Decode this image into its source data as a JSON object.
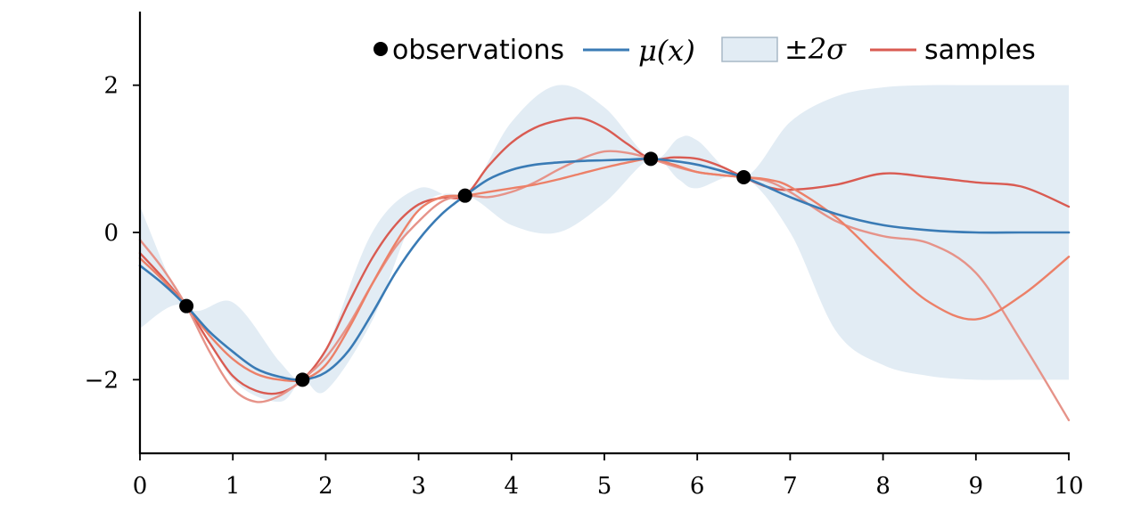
{
  "chart_data": {
    "type": "line",
    "title": "",
    "xlabel": "",
    "ylabel": "",
    "xlim": [
      0,
      10
    ],
    "ylim": [
      -3,
      3
    ],
    "xticks": [
      "0",
      "1",
      "2",
      "3",
      "4",
      "5",
      "6",
      "7",
      "8",
      "9",
      "10"
    ],
    "yticks": [
      "2",
      "0",
      "−2"
    ],
    "legend_position": "top-right",
    "grid": false,
    "legend": {
      "observations": "observations",
      "mean": "μ(x)",
      "band": "±2σ",
      "samples": "samples"
    },
    "colors": {
      "mean": "#3a7bb5",
      "band": "#e2ecf4",
      "band_edge": "#a8b8c6",
      "sample_1": "#d95b52",
      "sample_2": "#e69389",
      "sample_3": "#ec8068",
      "observations": "#000000"
    },
    "observations": {
      "x": [
        0.5,
        1.75,
        3.5,
        5.5,
        6.5
      ],
      "y": [
        -1.0,
        -2.0,
        0.5,
        1.0,
        0.75
      ]
    },
    "band": {
      "x": [
        0,
        0.5,
        1.0,
        1.5,
        1.75,
        2.0,
        2.5,
        3.0,
        3.5,
        4.0,
        4.5,
        5.0,
        5.5,
        5.8,
        6.0,
        6.5,
        7.0,
        7.5,
        8.0,
        8.5,
        9.0,
        9.5,
        10.0
      ],
      "upper": [
        0.35,
        -1.0,
        -0.95,
        -1.75,
        -2.0,
        -1.6,
        0.0,
        0.6,
        0.5,
        1.5,
        2.0,
        1.7,
        1.0,
        1.28,
        1.25,
        0.75,
        1.5,
        1.85,
        1.97,
        2.0,
        2.0,
        2.0,
        2.0
      ],
      "lower": [
        -1.3,
        -1.0,
        -2.0,
        -2.3,
        -2.0,
        -2.15,
        -1.2,
        0.3,
        0.5,
        0.1,
        0.0,
        0.4,
        1.0,
        0.72,
        0.6,
        0.75,
        0.0,
        -1.35,
        -1.8,
        -1.95,
        -2.0,
        -2.0,
        -2.0
      ]
    },
    "series": [
      {
        "name": "μ(x)",
        "role": "mean",
        "x": [
          0,
          0.25,
          0.5,
          0.75,
          1.0,
          1.25,
          1.5,
          1.75,
          2.0,
          2.25,
          2.5,
          2.75,
          3.0,
          3.25,
          3.5,
          3.75,
          4.0,
          4.25,
          4.5,
          4.75,
          5.0,
          5.25,
          5.5,
          5.75,
          6.0,
          6.25,
          6.5,
          6.75,
          7.0,
          7.5,
          8.0,
          8.5,
          9.0,
          9.5,
          10.0
        ],
        "y": [
          -0.45,
          -0.7,
          -1.0,
          -1.35,
          -1.62,
          -1.85,
          -1.96,
          -2.0,
          -1.9,
          -1.6,
          -1.1,
          -0.55,
          -0.1,
          0.25,
          0.5,
          0.72,
          0.85,
          0.92,
          0.95,
          0.97,
          0.98,
          0.99,
          1.0,
          0.97,
          0.92,
          0.84,
          0.75,
          0.62,
          0.48,
          0.25,
          0.1,
          0.03,
          0.0,
          0.0,
          0.0
        ]
      },
      {
        "name": "samples",
        "role": "sample",
        "x": [
          0,
          0.25,
          0.5,
          0.75,
          1.0,
          1.25,
          1.5,
          1.75,
          2.0,
          2.25,
          2.5,
          2.75,
          3.0,
          3.25,
          3.5,
          3.75,
          4.0,
          4.25,
          4.5,
          4.75,
          5.0,
          5.25,
          5.5,
          5.75,
          6.0,
          6.25,
          6.5,
          6.75,
          7.0,
          7.5,
          8.0,
          8.5,
          9.0,
          9.5,
          10.0
        ],
        "y": [
          -0.28,
          -0.62,
          -1.0,
          -1.5,
          -1.95,
          -2.15,
          -2.18,
          -2.0,
          -1.6,
          -0.95,
          -0.35,
          0.1,
          0.38,
          0.47,
          0.5,
          0.9,
          1.22,
          1.42,
          1.52,
          1.55,
          1.42,
          1.2,
          1.0,
          1.02,
          1.0,
          0.9,
          0.75,
          0.62,
          0.58,
          0.65,
          0.8,
          0.75,
          0.68,
          0.62,
          0.35
        ]
      },
      {
        "name": "",
        "role": "sample",
        "x": [
          0,
          0.25,
          0.5,
          0.75,
          1.0,
          1.25,
          1.5,
          1.75,
          2.0,
          2.25,
          2.5,
          2.75,
          3.0,
          3.25,
          3.5,
          3.75,
          4.0,
          4.25,
          4.5,
          4.75,
          5.0,
          5.25,
          5.5,
          5.75,
          6.0,
          6.25,
          6.5,
          6.75,
          7.0,
          7.5,
          8.0,
          8.5,
          9.0,
          9.5,
          10.0
        ],
        "y": [
          -0.1,
          -0.5,
          -1.0,
          -1.62,
          -2.12,
          -2.3,
          -2.22,
          -2.0,
          -1.7,
          -1.25,
          -0.7,
          -0.2,
          0.15,
          0.42,
          0.5,
          0.48,
          0.55,
          0.68,
          0.85,
          1.0,
          1.1,
          1.08,
          1.0,
          0.9,
          0.82,
          0.78,
          0.75,
          0.7,
          0.55,
          0.15,
          -0.05,
          -0.15,
          -0.55,
          -1.5,
          -2.55
        ]
      },
      {
        "name": "",
        "role": "sample",
        "x": [
          0,
          0.25,
          0.5,
          0.75,
          1.0,
          1.25,
          1.5,
          1.75,
          2.0,
          2.25,
          2.5,
          2.75,
          3.0,
          3.25,
          3.5,
          3.75,
          4.0,
          4.25,
          4.5,
          4.75,
          5.0,
          5.25,
          5.5,
          5.75,
          6.0,
          6.25,
          6.5,
          6.75,
          7.0,
          7.5,
          8.0,
          8.5,
          9.0,
          9.5,
          10.0
        ],
        "y": [
          -0.35,
          -0.65,
          -1.0,
          -1.4,
          -1.72,
          -1.92,
          -2.0,
          -2.0,
          -1.8,
          -1.3,
          -0.7,
          -0.15,
          0.3,
          0.48,
          0.5,
          0.55,
          0.6,
          0.65,
          0.72,
          0.8,
          0.88,
          0.95,
          1.0,
          0.92,
          0.82,
          0.78,
          0.75,
          0.72,
          0.62,
          0.2,
          -0.4,
          -0.95,
          -1.18,
          -0.85,
          -0.33
        ]
      }
    ]
  }
}
